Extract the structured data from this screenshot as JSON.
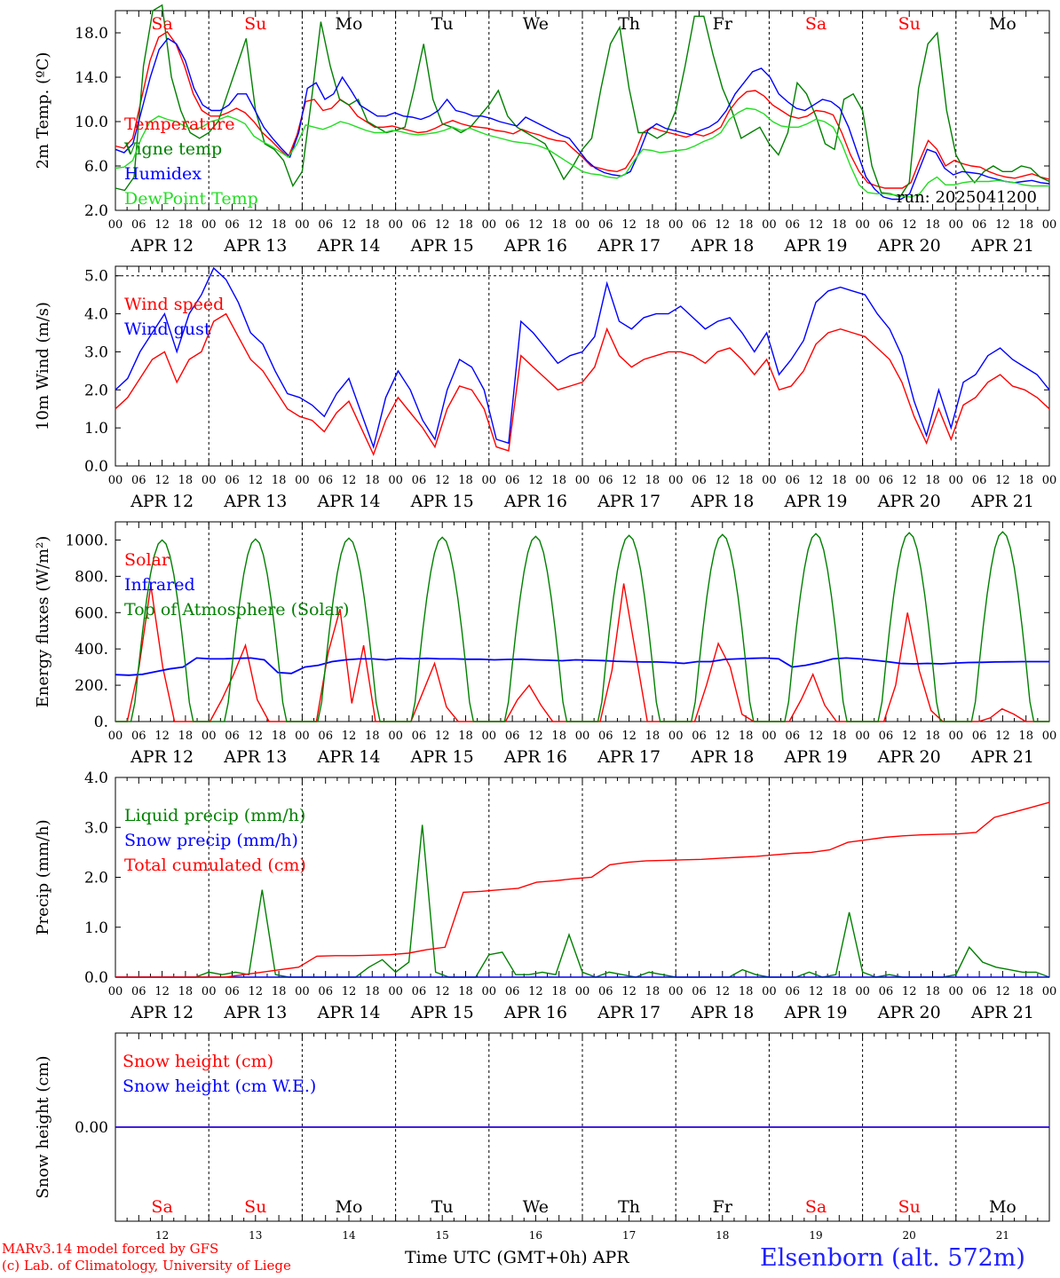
{
  "days": [
    "Sa",
    "Su",
    "Mo",
    "Tu",
    "We",
    "Th",
    "Fr",
    "Sa",
    "Su",
    "Mo"
  ],
  "day_numbers": [
    "12",
    "13",
    "14",
    "15",
    "16",
    "17",
    "18",
    "19",
    "20",
    "21"
  ],
  "date_labels": [
    "APR 12",
    "APR 13",
    "APR 14",
    "APR 15",
    "APR 16",
    "APR 17",
    "APR 18",
    "APR 19",
    "APR 20",
    "APR 21"
  ],
  "hour_ticks": [
    "00",
    "06",
    "12",
    "18"
  ],
  "last_hour_tick": "00",
  "weekend_color": "#ff0000",
  "weekday_color": "#000000",
  "footer": {
    "model": "MARv3.14 model forced by GFS",
    "copyright": "(c) Lab. of Climatology, University of Liege",
    "xlabel": "Time UTC (GMT+0h)",
    "month": "APR",
    "station": "Elsenborn (alt. 572m)"
  },
  "chart_data": [
    {
      "type": "line",
      "ylabel": "2m Temp. (ºC)",
      "ylim": [
        2,
        20
      ],
      "yticks": [
        "2.0",
        "6.0",
        "10.0",
        "14.0",
        "18.0"
      ],
      "annotation": "run: 2025041200",
      "x_start": "2025-04-12 00:00",
      "x_step_hours": 3,
      "series": [
        {
          "name": "Temperature",
          "color": "#ff0000",
          "values": [
            7.8,
            7.6,
            8.5,
            12,
            15.5,
            17.6,
            18.1,
            17,
            15,
            12.5,
            11,
            10.5,
            10.5,
            10.8,
            11.2,
            10.8,
            10,
            9,
            8.3,
            7.5,
            6.8,
            8.8,
            11.8,
            12,
            11,
            11.2,
            12,
            11.5,
            10.5,
            10,
            9.5,
            9.5,
            9.6,
            9.4,
            9.2,
            9,
            9.1,
            9.4,
            9.8,
            10.1,
            9.8,
            9.6,
            9.5,
            9.4,
            9.2,
            9.1,
            8.9,
            9.3,
            9,
            8.8,
            8.5,
            8.3,
            8.2,
            7.5,
            6.8,
            6,
            5.8,
            5.6,
            5.5,
            5.8,
            7,
            9,
            9.5,
            9.2,
            9,
            8.8,
            8.6,
            8.9,
            8.7,
            9,
            9.5,
            11,
            12,
            12.7,
            12.8,
            12.3,
            11.5,
            11,
            10.5,
            10.3,
            10.5,
            11,
            10.9,
            10.6,
            9,
            7,
            5.5,
            4.5,
            4.2,
            4,
            4,
            4,
            4.5,
            6.5,
            8.3,
            7.5,
            6,
            6.5,
            6.2,
            6,
            5.9,
            5.5,
            5.2,
            5,
            4.9,
            5.1,
            5.3,
            5,
            4.8
          ]
        },
        {
          "name": "Vigne temp",
          "color": "#008000",
          "values": [
            4,
            3.8,
            5,
            15,
            20,
            20.5,
            14,
            11,
            9,
            8.5,
            9,
            10,
            12.5,
            15,
            17.5,
            11,
            8,
            7.5,
            6.5,
            4.2,
            5.5,
            12,
            19,
            15,
            12,
            11.5,
            12,
            10,
            9.5,
            9,
            9.2,
            9.5,
            13,
            17,
            12,
            9.8,
            9.5,
            9,
            9.5,
            10.5,
            11.5,
            12.8,
            10.5,
            9.5,
            9,
            8.5,
            8,
            6.5,
            4.8,
            6,
            7.5,
            8.5,
            13,
            17,
            18.5,
            13,
            9,
            9,
            8.5,
            9,
            11,
            15,
            19.5,
            19.5,
            16,
            13,
            11,
            8.5,
            9,
            9.5,
            8,
            7,
            9,
            13.5,
            12.5,
            10.5,
            8,
            7.5,
            12,
            12.5,
            11,
            6,
            3.6,
            3.5,
            3.2,
            4.5,
            13,
            17,
            18,
            11,
            7,
            5.5,
            4.5,
            5.5,
            6,
            5.5,
            5.5,
            6,
            5.8,
            5,
            4.6
          ]
        },
        {
          "name": "Humidex",
          "color": "#0000ff",
          "values": [
            7.5,
            7.2,
            8,
            11,
            14,
            16.5,
            17.5,
            17,
            15.5,
            13,
            11.5,
            11,
            11,
            11.5,
            12.5,
            12.5,
            11,
            9.5,
            8.5,
            7.6,
            6.8,
            9,
            13,
            13.5,
            12,
            12.5,
            14,
            12.8,
            11.5,
            11,
            10.5,
            10.5,
            10.8,
            10.5,
            10.4,
            10.2,
            10.5,
            11,
            12,
            11,
            10.8,
            10.5,
            10.5,
            10.3,
            10,
            9.8,
            9.6,
            10.4,
            10,
            9.6,
            9.2,
            8.8,
            8.5,
            7.5,
            6.5,
            5.8,
            5.4,
            5.2,
            5.1,
            5.5,
            7.2,
            9.2,
            9.8,
            9.4,
            9.2,
            9,
            8.8,
            9.2,
            9.5,
            10,
            11,
            12.5,
            13.5,
            14.5,
            14.8,
            14,
            12.5,
            11.8,
            11.2,
            11,
            11.5,
            12,
            11.8,
            11.2,
            9.5,
            7.2,
            5,
            3.9,
            3.2,
            3,
            3,
            3.5,
            5.5,
            7.5,
            7.2,
            5.8,
            5.2,
            5.5,
            5.4,
            5.3,
            5,
            4.8,
            4.6,
            4.5,
            4.6,
            4.7,
            4.5,
            4.4
          ]
        },
        {
          "name": "DewPoint Temp",
          "color": "#22dd22",
          "values": [
            5.8,
            5.9,
            6.5,
            8.5,
            10,
            10.5,
            10.2,
            10,
            9.6,
            9.3,
            9.5,
            10,
            10.2,
            10.5,
            10.2,
            9.8,
            8.7,
            8.2,
            7.8,
            7.3,
            6.8,
            8,
            9.7,
            9.5,
            9.3,
            9.6,
            10,
            9.8,
            9.5,
            9.2,
            9,
            9,
            9.2,
            9.1,
            8.9,
            8.8,
            8.9,
            9,
            9.2,
            9.5,
            9.2,
            9.4,
            9.1,
            8.8,
            8.6,
            8.4,
            8.2,
            8.1,
            8,
            7.8,
            7.5,
            7,
            6.5,
            6,
            5.5,
            5.3,
            5.2,
            5,
            4.9,
            5.3,
            6.5,
            7.5,
            7.4,
            7.2,
            7.3,
            7.4,
            7.5,
            7.8,
            8.2,
            8.5,
            9,
            10.2,
            10.8,
            11.2,
            11.1,
            10.7,
            10,
            9.6,
            9.5,
            9.5,
            9.8,
            10.2,
            10,
            9.5,
            8,
            6,
            4.3,
            3.6,
            3.5,
            3.5,
            3.4,
            3.3,
            3.2,
            3.5,
            4.5,
            5,
            4.3,
            4.3,
            4.5,
            4.6,
            4.6,
            4.6,
            4.7,
            4.6,
            4.5,
            4.3,
            4.2,
            4.2,
            4.2
          ]
        }
      ]
    },
    {
      "type": "line",
      "ylabel": "10m Wind (m/s)",
      "ylim": [
        0,
        5.25
      ],
      "yticks": [
        "0.0",
        "1.0",
        "2.0",
        "3.0",
        "4.0",
        "5.0"
      ],
      "x_start": "2025-04-12 00:00",
      "x_step_hours": 3,
      "series": [
        {
          "name": "Wind speed",
          "color": "#ff0000",
          "values": [
            1.5,
            1.8,
            2.3,
            2.8,
            3.0,
            2.2,
            2.8,
            3.0,
            3.8,
            4.0,
            3.4,
            2.8,
            2.5,
            2.0,
            1.5,
            1.3,
            1.2,
            0.9,
            1.4,
            1.7,
            1.0,
            0.3,
            1.2,
            1.8,
            1.4,
            1.0,
            0.5,
            1.5,
            2.1,
            2.0,
            1.5,
            0.5,
            0.4,
            2.9,
            2.6,
            2.3,
            2.0,
            2.1,
            2.2,
            2.6,
            3.6,
            2.9,
            2.6,
            2.8,
            2.9,
            3.0,
            3.0,
            2.9,
            2.7,
            3.0,
            3.1,
            2.8,
            2.4,
            2.8,
            2.0,
            2.1,
            2.5,
            3.2,
            3.5,
            3.6,
            3.5,
            3.4,
            3.1,
            2.8,
            2.2,
            1.3,
            0.6,
            1.5,
            0.7,
            1.6,
            1.8,
            2.2,
            2.4,
            2.1,
            2.0,
            1.8,
            1.5
          ]
        },
        {
          "name": "Wind gust",
          "color": "#0000ff",
          "values": [
            2.0,
            2.3,
            3.0,
            3.5,
            4.0,
            3.0,
            4.0,
            4.5,
            5.2,
            4.9,
            4.3,
            3.5,
            3.2,
            2.5,
            1.9,
            1.8,
            1.6,
            1.3,
            1.9,
            2.3,
            1.4,
            0.5,
            1.8,
            2.5,
            2.0,
            1.2,
            0.7,
            2.0,
            2.8,
            2.6,
            2.0,
            0.7,
            0.6,
            3.8,
            3.5,
            3.1,
            2.7,
            2.9,
            3.0,
            3.4,
            4.8,
            3.8,
            3.6,
            3.9,
            4.0,
            4.0,
            4.2,
            3.9,
            3.6,
            3.8,
            3.9,
            3.5,
            3.0,
            3.5,
            2.4,
            2.8,
            3.3,
            4.3,
            4.6,
            4.7,
            4.6,
            4.5,
            4.0,
            3.6,
            2.9,
            1.7,
            0.8,
            2.0,
            1.0,
            2.2,
            2.4,
            2.9,
            3.1,
            2.8,
            2.6,
            2.4,
            2.0
          ]
        }
      ]
    },
    {
      "type": "line",
      "ylabel": "Energy fluxes (W/m²)",
      "ylim": [
        0,
        1100
      ],
      "yticks": [
        "0.",
        "200.",
        "400.",
        "600.",
        "800.",
        "1000."
      ],
      "x_start": "2025-04-12 00:00",
      "x_step_hours": 3,
      "series": [
        {
          "name": "Solar",
          "color": "#ff0000",
          "values": [
            0,
            0,
            300,
            750,
            300,
            0,
            0,
            0,
            0,
            120,
            260,
            420,
            120,
            0,
            0,
            0,
            0,
            0,
            380,
            620,
            100,
            420,
            0,
            0,
            0,
            0,
            160,
            320,
            80,
            0,
            0,
            0,
            0,
            0,
            120,
            200,
            90,
            0,
            0,
            0,
            0,
            0,
            280,
            760,
            380,
            0,
            0,
            0,
            0,
            0,
            200,
            430,
            300,
            40,
            0,
            0,
            0,
            0,
            120,
            260,
            90,
            0,
            0,
            0,
            0,
            0,
            200,
            600,
            280,
            60,
            0,
            0,
            0,
            0,
            20,
            70,
            40,
            0,
            0,
            0
          ]
        },
        {
          "name": "Infrared",
          "color": "#0000ff",
          "values": [
            258,
            255,
            260,
            275,
            290,
            300,
            350,
            345,
            345,
            348,
            350,
            340,
            270,
            265,
            300,
            310,
            330,
            340,
            345,
            345,
            340,
            348,
            345,
            348,
            345,
            345,
            343,
            343,
            340,
            342,
            343,
            340,
            338,
            335,
            340,
            338,
            336,
            332,
            330,
            328,
            328,
            325,
            320,
            330,
            330,
            342,
            345,
            348,
            350,
            345,
            300,
            310,
            325,
            345,
            350,
            345,
            338,
            330,
            320,
            318,
            320,
            318,
            322,
            325,
            326,
            328,
            329,
            330,
            330,
            330
          ]
        },
        {
          "name": "Top of Atmosphere (Solar)",
          "color": "#008000",
          "values_note": "daily diurnal arch",
          "values": [
            1000,
            1005,
            1010,
            1015,
            1020,
            1025,
            1030,
            1035,
            1040,
            1045
          ]
        }
      ]
    },
    {
      "type": "line",
      "ylabel": "Precip (mm/h)",
      "ylim": [
        0,
        4
      ],
      "yticks": [
        "0.0",
        "1.0",
        "2.0",
        "3.0",
        "4.0"
      ],
      "x_start": "2025-04-12 00:00",
      "x_step_hours": 3,
      "series": [
        {
          "name": "Liquid precip (mm/h)",
          "color": "#008000",
          "values": [
            0,
            0,
            0,
            0,
            0,
            0,
            0,
            0.1,
            0.05,
            0.1,
            0.05,
            1.75,
            0.05,
            0,
            0,
            0,
            0,
            0,
            0,
            0.2,
            0.35,
            0.1,
            0.3,
            3.05,
            0.1,
            0,
            0,
            0,
            0.45,
            0.5,
            0.05,
            0.05,
            0.1,
            0.05,
            0.85,
            0.1,
            0,
            0.1,
            0.05,
            0,
            0.1,
            0.05,
            0,
            0,
            0,
            0,
            0,
            0.15,
            0.05,
            0,
            0,
            0,
            0.1,
            0,
            0.05,
            1.3,
            0.1,
            0,
            0.05,
            0,
            0,
            0,
            0,
            0.05,
            0.6,
            0.3,
            0.2,
            0.15,
            0.1,
            0.1,
            0
          ]
        },
        {
          "name": "Snow precip (mm/h)",
          "color": "#0000ff",
          "values": [
            0
          ]
        },
        {
          "name": "Total cumulated (cm)",
          "color": "#ff0000",
          "values": [
            0,
            0,
            0,
            0,
            0,
            0,
            0,
            0.05,
            0.1,
            0.15,
            0.2,
            0.42,
            0.43,
            0.43,
            0.44,
            0.45,
            0.48,
            0.55,
            0.6,
            1.7,
            1.72,
            1.75,
            1.78,
            1.9,
            1.93,
            1.97,
            2.0,
            2.25,
            2.3,
            2.33,
            2.34,
            2.35,
            2.36,
            2.38,
            2.4,
            2.42,
            2.45,
            2.48,
            2.5,
            2.55,
            2.7,
            2.75,
            2.8,
            2.83,
            2.85,
            2.86,
            2.87,
            2.9,
            3.2,
            3.3,
            3.4,
            3.5
          ]
        }
      ]
    },
    {
      "type": "line",
      "ylabel": "Snow height (cm)",
      "yticks": [
        "0.00"
      ],
      "series": [
        {
          "name": "Snow height (cm)",
          "color": "#ff0000",
          "values": [
            0,
            0
          ]
        },
        {
          "name": "Snow height (cm W.E.)",
          "color": "#0000ff",
          "values": [
            0,
            0
          ]
        }
      ]
    }
  ]
}
